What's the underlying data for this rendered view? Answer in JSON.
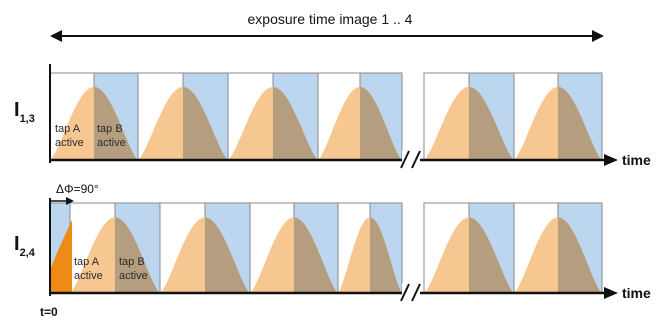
{
  "title": "exposure time image 1 .. 4",
  "colors": {
    "tap_a_fill": "#f6c48b",
    "tap_b_fill": "#bcd6ef",
    "overlap_fill": "#b59e7f",
    "frame_stroke": "#8a8a8a",
    "axis": "#111111",
    "orange_start": "#f08a16"
  },
  "row1": {
    "label_main": "I",
    "label_sub": "1,3",
    "tap_a": [
      "tap A",
      "active"
    ],
    "tap_b": [
      "tap B",
      "active"
    ],
    "axis_label": "time"
  },
  "row2": {
    "label_main": "I",
    "label_sub": "2,4",
    "phase_label": "ΔΦ=90°",
    "tap_a": [
      "tap A",
      "active"
    ],
    "tap_b": [
      "tap B",
      "active"
    ],
    "axis_label": "time"
  },
  "origin_label": "t=0"
}
